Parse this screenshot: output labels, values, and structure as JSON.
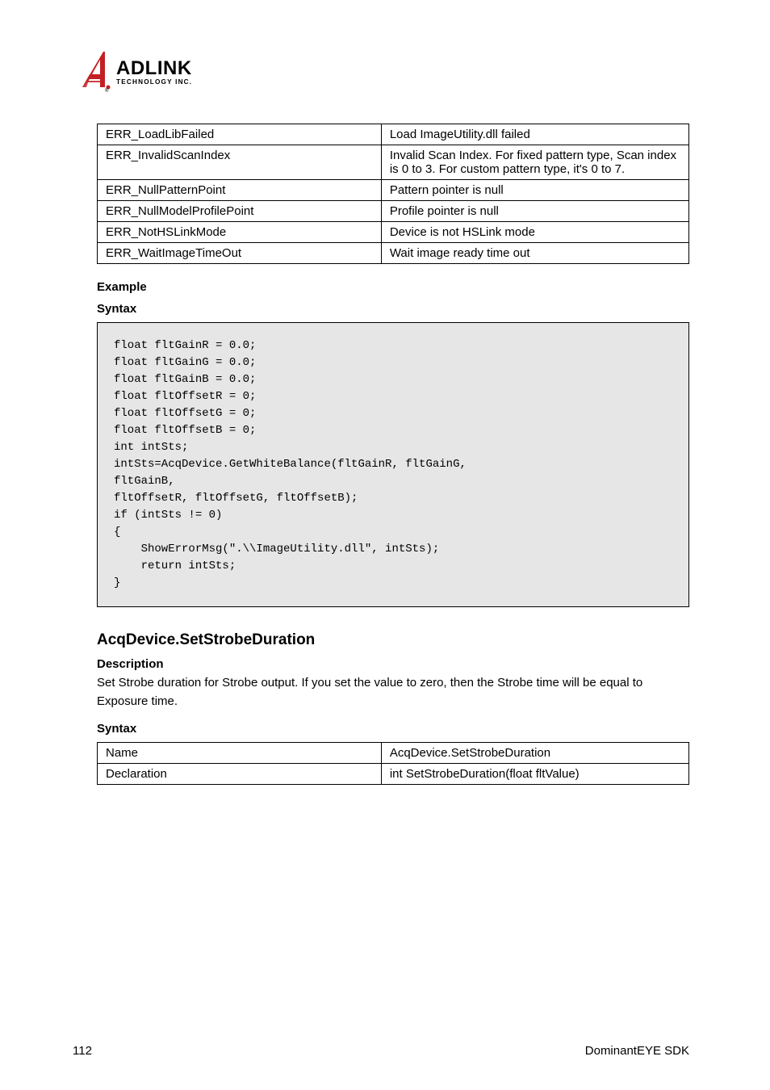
{
  "logo": {
    "main_text": "ADLINK",
    "sub_text": "TECHNOLOGY INC.",
    "register_mark": "®",
    "fill_color": "#c32024",
    "text_color": "#000000"
  },
  "table1": {
    "rows": [
      [
        "ERR_LoadLibFailed",
        "Load ImageUtility.dll failed"
      ],
      [
        "ERR_InvalidScanIndex",
        "Invalid Scan Index. For fixed pattern type, Scan index is 0 to 3. For custom pattern type, it's 0 to 7."
      ],
      [
        "ERR_NullPatternPoint",
        "Pattern pointer is null"
      ],
      [
        "ERR_NullModelProfilePoint",
        "Profile pointer is null"
      ],
      [
        "ERR_NotHSLinkMode",
        "Device is not HSLink mode"
      ],
      [
        "ERR_WaitImageTimeOut",
        "Wait image ready time out"
      ]
    ]
  },
  "example": {
    "title": "Example",
    "syntax_label": "Syntax",
    "code": "float fltGainR = 0.0;\nfloat fltGainG = 0.0;\nfloat fltGainB = 0.0;\nfloat fltOffsetR = 0;\nfloat fltOffsetG = 0;\nfloat fltOffsetB = 0;\nint intSts;\nintSts=AcqDevice.GetWhiteBalance(fltGainR, fltGainG,\nfltGainB,\nfltOffsetR, fltOffsetG, fltOffsetB);\nif (intSts != 0)\n{\n    ShowErrorMsg(\".\\\\ImageUtility.dll\", intSts);\n    return intSts;\n}"
  },
  "function": {
    "heading": "AcqDevice.SetStrobeDuration",
    "desc_label": "Description",
    "desc_text": "Set Strobe duration for Strobe output. If you set the value to zero, then the Strobe time will be equal to Exposure time.",
    "syntax_label": "Syntax"
  },
  "table2": {
    "rows": [
      [
        "Name",
        "AcqDevice.SetStrobeDuration"
      ],
      [
        "Declaration",
        "int SetStrobeDuration(float fltValue)"
      ]
    ]
  },
  "footer": {
    "page_num": "112",
    "doc_title": "DominantEYE SDK"
  }
}
